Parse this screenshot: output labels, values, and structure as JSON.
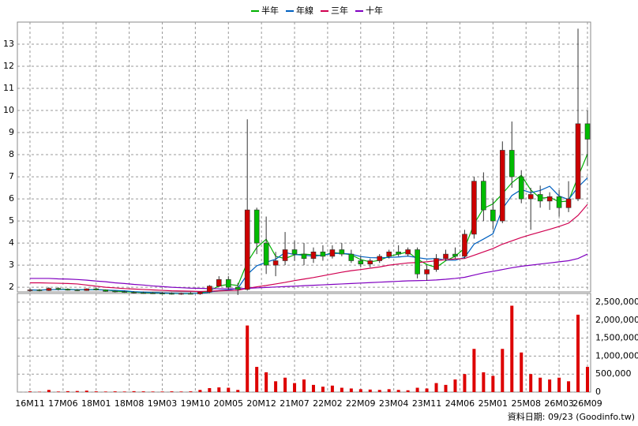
{
  "chart_data": {
    "type": "candlestick",
    "footer": "資料日期: 09/23 (Goodinfo.tw)",
    "x": [
      0,
      2,
      4,
      6,
      8,
      10,
      12,
      14,
      16,
      18,
      20,
      22,
      24,
      26,
      28,
      30,
      32,
      34,
      36,
      38,
      40,
      42,
      44,
      46,
      48,
      50,
      52,
      54,
      56,
      58,
      60,
      62,
      64,
      66,
      68,
      70,
      72,
      74,
      76,
      78,
      80,
      82,
      84,
      86,
      88,
      90,
      92,
      94,
      96,
      98,
      100,
      102,
      104,
      106,
      108,
      110,
      112,
      114,
      116,
      118
    ],
    "xlim": [
      -2.67,
      118.67
    ],
    "xticks": [
      {
        "value": 0,
        "label": "16M11"
      },
      {
        "value": 7,
        "label": "17M06"
      },
      {
        "value": 14,
        "label": "18M01"
      },
      {
        "value": 21,
        "label": "18M08"
      },
      {
        "value": 28,
        "label": "19M03"
      },
      {
        "value": 35,
        "label": "19M10"
      },
      {
        "value": 42,
        "label": "20M05"
      },
      {
        "value": 49,
        "label": "20M12"
      },
      {
        "value": 56,
        "label": "21M07"
      },
      {
        "value": 63,
        "label": "22M02"
      },
      {
        "value": 70,
        "label": "22M09"
      },
      {
        "value": 77,
        "label": "23M04"
      },
      {
        "value": 84,
        "label": "23M11"
      },
      {
        "value": 91,
        "label": "24M06"
      },
      {
        "value": 98,
        "label": "25M01"
      },
      {
        "value": 105,
        "label": "25M08"
      },
      {
        "value": 112,
        "label": "26M03"
      },
      {
        "value": 118,
        "label": "26M09"
      }
    ],
    "ylim": [
      1.79,
      14
    ],
    "yticks": [
      2,
      3,
      4,
      5,
      6,
      7,
      8,
      9,
      10,
      11,
      12,
      13
    ],
    "up_color": "#cc0000",
    "down_color": "#00bb00",
    "grid": true,
    "open": [
      1.85,
      1.88,
      1.85,
      1.95,
      1.9,
      1.88,
      1.85,
      1.93,
      1.88,
      1.82,
      1.8,
      1.78,
      1.75,
      1.74,
      1.73,
      1.72,
      1.7,
      1.72,
      1.7,
      1.78,
      2.05,
      2.35,
      2.0,
      1.9,
      5.5,
      4.0,
      3.0,
      3.2,
      3.7,
      3.5,
      3.3,
      3.6,
      3.4,
      3.7,
      3.5,
      3.2,
      3.05,
      3.2,
      3.4,
      3.6,
      3.5,
      3.7,
      2.6,
      2.8,
      3.3,
      3.5,
      3.4,
      4.4,
      6.8,
      5.5,
      5.0,
      8.2,
      7.0,
      6.0,
      6.2,
      5.9,
      6.1,
      5.6,
      6.0,
      9.4
    ],
    "high": [
      1.95,
      1.92,
      2.0,
      2.0,
      1.95,
      1.92,
      1.95,
      1.98,
      1.9,
      1.86,
      1.85,
      1.82,
      1.8,
      1.78,
      1.78,
      1.76,
      1.75,
      1.78,
      1.8,
      2.1,
      2.5,
      2.5,
      2.2,
      9.6,
      5.6,
      5.2,
      3.6,
      4.5,
      4.1,
      4.0,
      3.8,
      3.9,
      3.9,
      4.0,
      3.7,
      3.4,
      3.3,
      3.5,
      3.7,
      3.9,
      3.8,
      3.8,
      3.0,
      3.5,
      3.7,
      3.8,
      4.6,
      7.0,
      7.2,
      6.0,
      8.6,
      9.5,
      7.3,
      6.5,
      6.6,
      6.3,
      6.4,
      6.8,
      13.7,
      10.0
    ],
    "low": [
      1.8,
      1.82,
      1.83,
      1.85,
      1.85,
      1.83,
      1.84,
      1.85,
      1.8,
      1.76,
      1.75,
      1.72,
      1.7,
      1.7,
      1.68,
      1.67,
      1.66,
      1.68,
      1.66,
      1.74,
      2.0,
      1.9,
      1.65,
      1.85,
      3.5,
      2.6,
      2.5,
      3.0,
      3.2,
      3.0,
      3.1,
      3.2,
      3.3,
      3.4,
      3.1,
      2.9,
      2.9,
      3.1,
      3.3,
      3.4,
      3.4,
      2.4,
      2.3,
      2.7,
      3.2,
      3.3,
      3.3,
      4.2,
      5.0,
      4.6,
      4.9,
      6.5,
      5.8,
      4.6,
      5.6,
      5.5,
      5.2,
      5.4,
      5.9,
      7.5
    ],
    "close": [
      1.88,
      1.85,
      1.95,
      1.9,
      1.88,
      1.85,
      1.93,
      1.88,
      1.82,
      1.8,
      1.78,
      1.75,
      1.74,
      1.73,
      1.72,
      1.7,
      1.72,
      1.7,
      1.78,
      2.05,
      2.35,
      2.0,
      1.9,
      5.5,
      4.0,
      3.0,
      3.2,
      3.7,
      3.5,
      3.3,
      3.6,
      3.4,
      3.7,
      3.5,
      3.2,
      3.05,
      3.2,
      3.4,
      3.6,
      3.5,
      3.7,
      2.6,
      2.8,
      3.3,
      3.5,
      3.4,
      4.4,
      6.8,
      5.5,
      5.0,
      8.2,
      7.0,
      6.0,
      6.2,
      5.9,
      6.1,
      5.6,
      6.0,
      9.4,
      8.7
    ],
    "series": [
      {
        "name": "半年",
        "color": "#00b000",
        "values": [
          1.88,
          1.87,
          1.89,
          1.9,
          1.91,
          1.88,
          1.89,
          1.89,
          1.88,
          1.83,
          1.8,
          1.78,
          1.76,
          1.74,
          1.73,
          1.72,
          1.71,
          1.71,
          1.73,
          1.84,
          2.06,
          2.13,
          2.08,
          3.13,
          3.8,
          4.17,
          3.4,
          3.3,
          3.47,
          3.5,
          3.47,
          3.43,
          3.57,
          3.53,
          3.47,
          3.25,
          3.15,
          3.22,
          3.4,
          3.5,
          3.6,
          3.27,
          3.03,
          2.9,
          3.2,
          3.4,
          3.77,
          4.87,
          5.57,
          5.77,
          6.23,
          6.73,
          7.07,
          6.4,
          6.03,
          6.07,
          5.87,
          5.9,
          7.0,
          8.03
        ]
      },
      {
        "name": "年線",
        "color": "#0060c0",
        "values": [
          1.88,
          1.87,
          1.89,
          1.9,
          1.89,
          1.89,
          1.89,
          1.89,
          1.87,
          1.86,
          1.84,
          1.8,
          1.78,
          1.76,
          1.74,
          1.73,
          1.72,
          1.72,
          1.72,
          1.77,
          1.85,
          1.88,
          1.95,
          2.58,
          2.97,
          3.13,
          3.27,
          3.57,
          3.48,
          3.45,
          3.41,
          3.45,
          3.53,
          3.53,
          3.5,
          3.39,
          3.34,
          3.33,
          3.35,
          3.37,
          3.41,
          3.34,
          3.28,
          3.3,
          3.23,
          3.22,
          3.35,
          3.95,
          4.18,
          4.42,
          5.55,
          6.15,
          6.42,
          6.28,
          6.38,
          6.57,
          6.13,
          5.97,
          6.53,
          6.95
        ]
      },
      {
        "name": "三年",
        "color": "#d00050",
        "values": [
          2.2,
          2.2,
          2.19,
          2.18,
          2.17,
          2.15,
          2.1,
          2.05,
          2.0,
          1.97,
          1.94,
          1.92,
          1.9,
          1.88,
          1.86,
          1.84,
          1.83,
          1.82,
          1.81,
          1.82,
          1.84,
          1.85,
          1.86,
          1.95,
          2.02,
          2.08,
          2.15,
          2.22,
          2.3,
          2.37,
          2.44,
          2.52,
          2.6,
          2.68,
          2.75,
          2.8,
          2.86,
          2.92,
          3.0,
          3.05,
          3.1,
          3.12,
          3.15,
          3.2,
          3.25,
          3.28,
          3.3,
          3.45,
          3.6,
          3.75,
          3.95,
          4.1,
          4.25,
          4.38,
          4.5,
          4.62,
          4.75,
          4.9,
          5.25,
          5.75
        ]
      },
      {
        "name": "十年",
        "color": "#8000c0",
        "values": [
          2.4,
          2.4,
          2.4,
          2.38,
          2.37,
          2.35,
          2.32,
          2.28,
          2.25,
          2.2,
          2.17,
          2.13,
          2.1,
          2.06,
          2.03,
          2.0,
          1.98,
          1.96,
          1.95,
          1.94,
          1.93,
          1.93,
          1.93,
          1.95,
          1.97,
          1.99,
          2.01,
          2.03,
          2.05,
          2.07,
          2.09,
          2.11,
          2.13,
          2.15,
          2.17,
          2.19,
          2.21,
          2.23,
          2.25,
          2.27,
          2.29,
          2.3,
          2.31,
          2.33,
          2.36,
          2.4,
          2.45,
          2.55,
          2.65,
          2.72,
          2.8,
          2.88,
          2.95,
          3.0,
          3.05,
          3.1,
          3.15,
          3.2,
          3.3,
          3.5
        ]
      }
    ],
    "volume": {
      "color": "#dd0000",
      "ylim": [
        0,
        2740000
      ],
      "yticks": [
        {
          "value": 0,
          "label": "0"
        },
        {
          "value": 500000,
          "label": "500,000"
        },
        {
          "value": 1000000,
          "label": "1,000,000"
        },
        {
          "value": 1500000,
          "label": "1,500,000"
        },
        {
          "value": 2000000,
          "label": "2,000,000"
        },
        {
          "value": 2500000,
          "label": "2,500,000"
        }
      ],
      "values": [
        20000,
        10000,
        60000,
        15000,
        25000,
        30000,
        40000,
        20000,
        15000,
        20000,
        15000,
        25000,
        20000,
        15000,
        15000,
        20000,
        15000,
        20000,
        60000,
        110000,
        130000,
        120000,
        60000,
        1850000,
        700000,
        550000,
        300000,
        400000,
        250000,
        350000,
        200000,
        150000,
        180000,
        120000,
        100000,
        80000,
        70000,
        60000,
        80000,
        60000,
        50000,
        120000,
        100000,
        250000,
        200000,
        350000,
        500000,
        1200000,
        550000,
        450000,
        1200000,
        2400000,
        1100000,
        500000,
        400000,
        350000,
        400000,
        300000,
        2150000,
        700000
      ]
    }
  }
}
